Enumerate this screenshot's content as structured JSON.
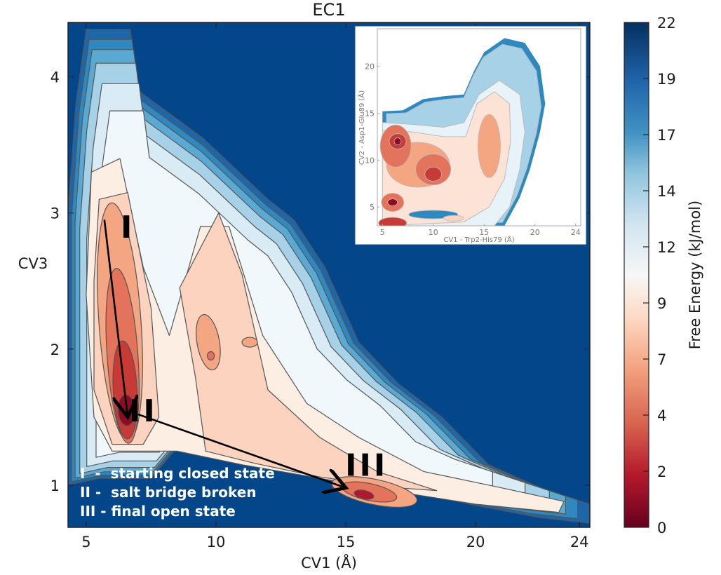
{
  "chart_data": {
    "type": "contour",
    "title": "EC1",
    "xlabel": "CV1 (Å)",
    "ylabel": "CV3",
    "xlim": [
      4.3,
      24.4
    ],
    "ylim": [
      0.69,
      4.4
    ],
    "xticks": [
      5,
      10,
      15,
      20,
      24
    ],
    "yticks": [
      1,
      2,
      3,
      4
    ],
    "colorbar": {
      "label": "Free Energy (kJ/mol)",
      "ticks": [
        "22",
        "19",
        "17",
        "14",
        "12",
        "9",
        "7",
        "4",
        "2",
        "0"
      ],
      "range": [
        0,
        22
      ],
      "colormap": "RdBu",
      "colors": [
        "#67001f",
        "#b2182b",
        "#d6604d",
        "#f4a582",
        "#fddbc7",
        "#fdf3ec",
        "#eef7fb",
        "#d1e5f0",
        "#92c5de",
        "#4393c3",
        "#2166ac",
        "#053061"
      ]
    },
    "background_color": "#03468a",
    "states": [
      {
        "label": "I",
        "cv1": 6.6,
        "cv3": 2.9,
        "description": "starting closed state"
      },
      {
        "label": "II",
        "cv1": 7.2,
        "cv3": 1.55,
        "description": "salt bridge broken"
      },
      {
        "label": "III",
        "cv1": 15.8,
        "cv3": 1.15,
        "description": "final open state"
      }
    ],
    "arrows": [
      {
        "from": [
          5.7,
          2.95
        ],
        "to": [
          6.6,
          1.5
        ]
      },
      {
        "from": [
          7.0,
          1.52
        ],
        "to": [
          15.0,
          0.98
        ]
      }
    ],
    "minima": [
      {
        "cv1": 6.5,
        "cv3": 1.55,
        "energy_kj_mol": 0
      },
      {
        "cv1": 15.7,
        "cv3": 0.93,
        "energy_kj_mol": 1
      },
      {
        "cv1": 9.7,
        "cv3": 2.05,
        "energy_kj_mol": 5
      }
    ],
    "legend": {
      "position": "bottom-left",
      "entries": [
        "I  -  starting closed state",
        "II -  salt bridge broken",
        "III - final open state"
      ]
    },
    "inset": {
      "position": "top-right",
      "xlabel": "CV1 - Trp2-His79 (Å)",
      "ylabel": "CV2 - Asp1-Glu89 (Å)",
      "xticks": [
        5,
        10,
        15,
        20,
        24
      ],
      "yticks": [
        5,
        10,
        15,
        20
      ],
      "xlim": [
        4.5,
        24.5
      ],
      "ylim": [
        3,
        24
      ],
      "minima": [
        {
          "cv1": 6.5,
          "cv2": 12,
          "energy_kj_mol": 0
        },
        {
          "cv1": 10,
          "cv2": 8.5,
          "energy_kj_mol": 1
        },
        {
          "cv1": 6,
          "cv2": 5.5,
          "energy_kj_mol": 0
        },
        {
          "cv1": 15.5,
          "cv2": 11.5,
          "energy_kj_mol": 5
        }
      ]
    }
  }
}
